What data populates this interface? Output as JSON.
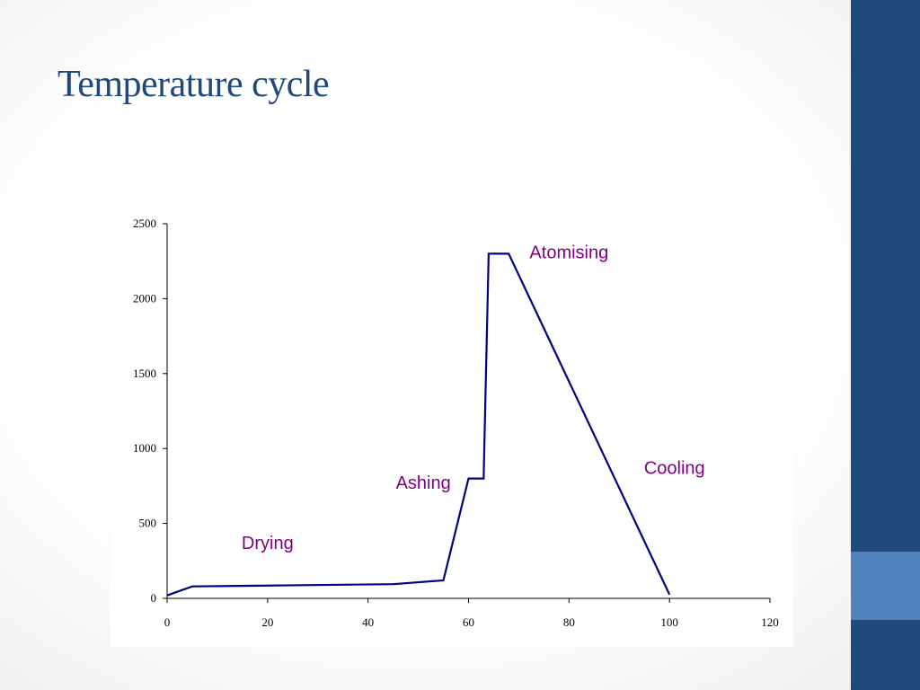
{
  "slide": {
    "title": "Temperature cycle"
  },
  "colors": {
    "title": "#1F497D",
    "sidebar": "#1F497D",
    "sidebar_accent": "#4F81BD",
    "series_line": "#000080",
    "annotation": "#800080"
  },
  "chart_data": {
    "type": "line",
    "title": "",
    "xlabel": "",
    "ylabel": "",
    "xlim": [
      0,
      120
    ],
    "ylim": [
      0,
      2500
    ],
    "x_ticks": [
      0,
      20,
      40,
      60,
      80,
      100,
      120
    ],
    "y_ticks": [
      0,
      500,
      1000,
      1500,
      2000,
      2500
    ],
    "grid": false,
    "series": [
      {
        "x": [
          0,
          5,
          45,
          55,
          60,
          63,
          64,
          68,
          100
        ],
        "y": [
          20,
          80,
          95,
          120,
          800,
          800,
          2300,
          2300,
          25
        ]
      }
    ],
    "annotations": [
      {
        "text": "Drying",
        "x": 20,
        "y": 330
      },
      {
        "text": "Ashing",
        "x": 51,
        "y": 730
      },
      {
        "text": "Atomising",
        "x": 80,
        "y": 2270
      },
      {
        "text": "Cooling",
        "x": 101,
        "y": 830
      }
    ]
  }
}
